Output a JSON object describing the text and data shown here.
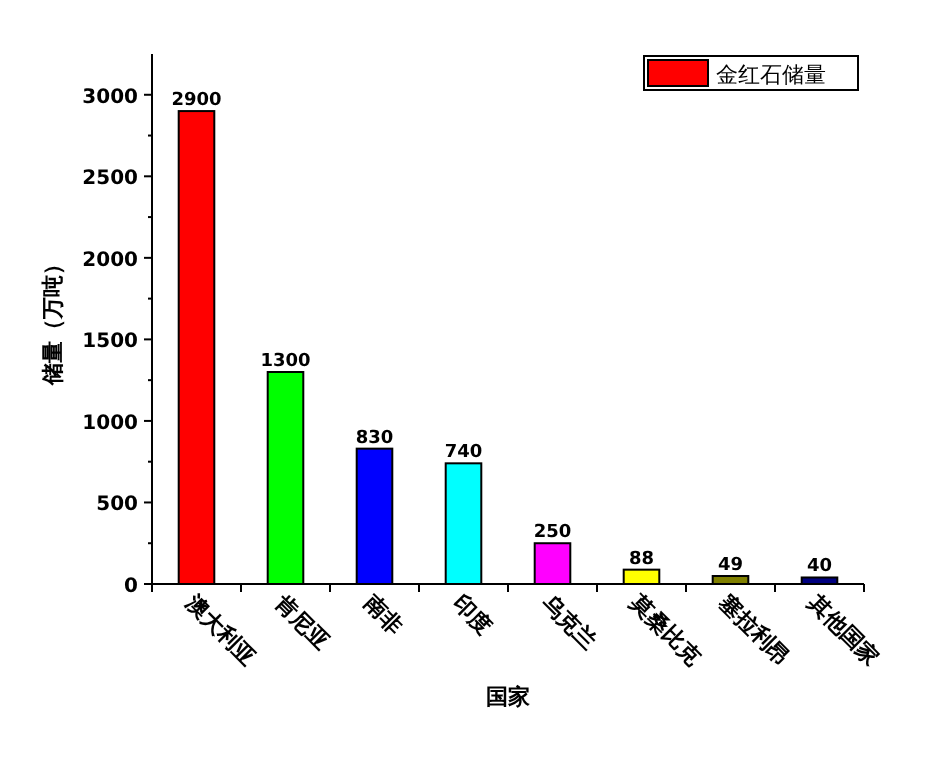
{
  "chart_data": {
    "type": "bar",
    "xlabel": "国家",
    "ylabel": "储量（万吨）",
    "categories": [
      "澳大利亚",
      "肯尼亚",
      "南非",
      "印度",
      "乌克兰",
      "莫桑比克",
      "塞拉利昂",
      "其他国家"
    ],
    "series": [
      {
        "name": "金红石储量",
        "color": "#ff0000",
        "colors": [
          "#ff0000",
          "#00ff00",
          "#0000ff",
          "#00ffff",
          "#ff00ff",
          "#ffff00",
          "#808000",
          "#000080"
        ],
        "values": [
          2900,
          1300,
          830,
          740,
          250,
          88,
          49,
          40
        ]
      }
    ],
    "ylim": [
      0,
      3250
    ],
    "yticks": [
      0,
      {
        "value": 250,
        "label": null
      },
      500,
      {
        "value": 750,
        "label": null
      },
      1000,
      {
        "value": 1250,
        "label": null
      },
      1500,
      {
        "value": 1750,
        "label": null
      },
      2000,
      {
        "value": 2250,
        "label": null
      },
      2500,
      {
        "value": 2750,
        "label": null
      },
      3000
    ],
    "data_labels": true,
    "legend": "top right",
    "grid": false
  }
}
